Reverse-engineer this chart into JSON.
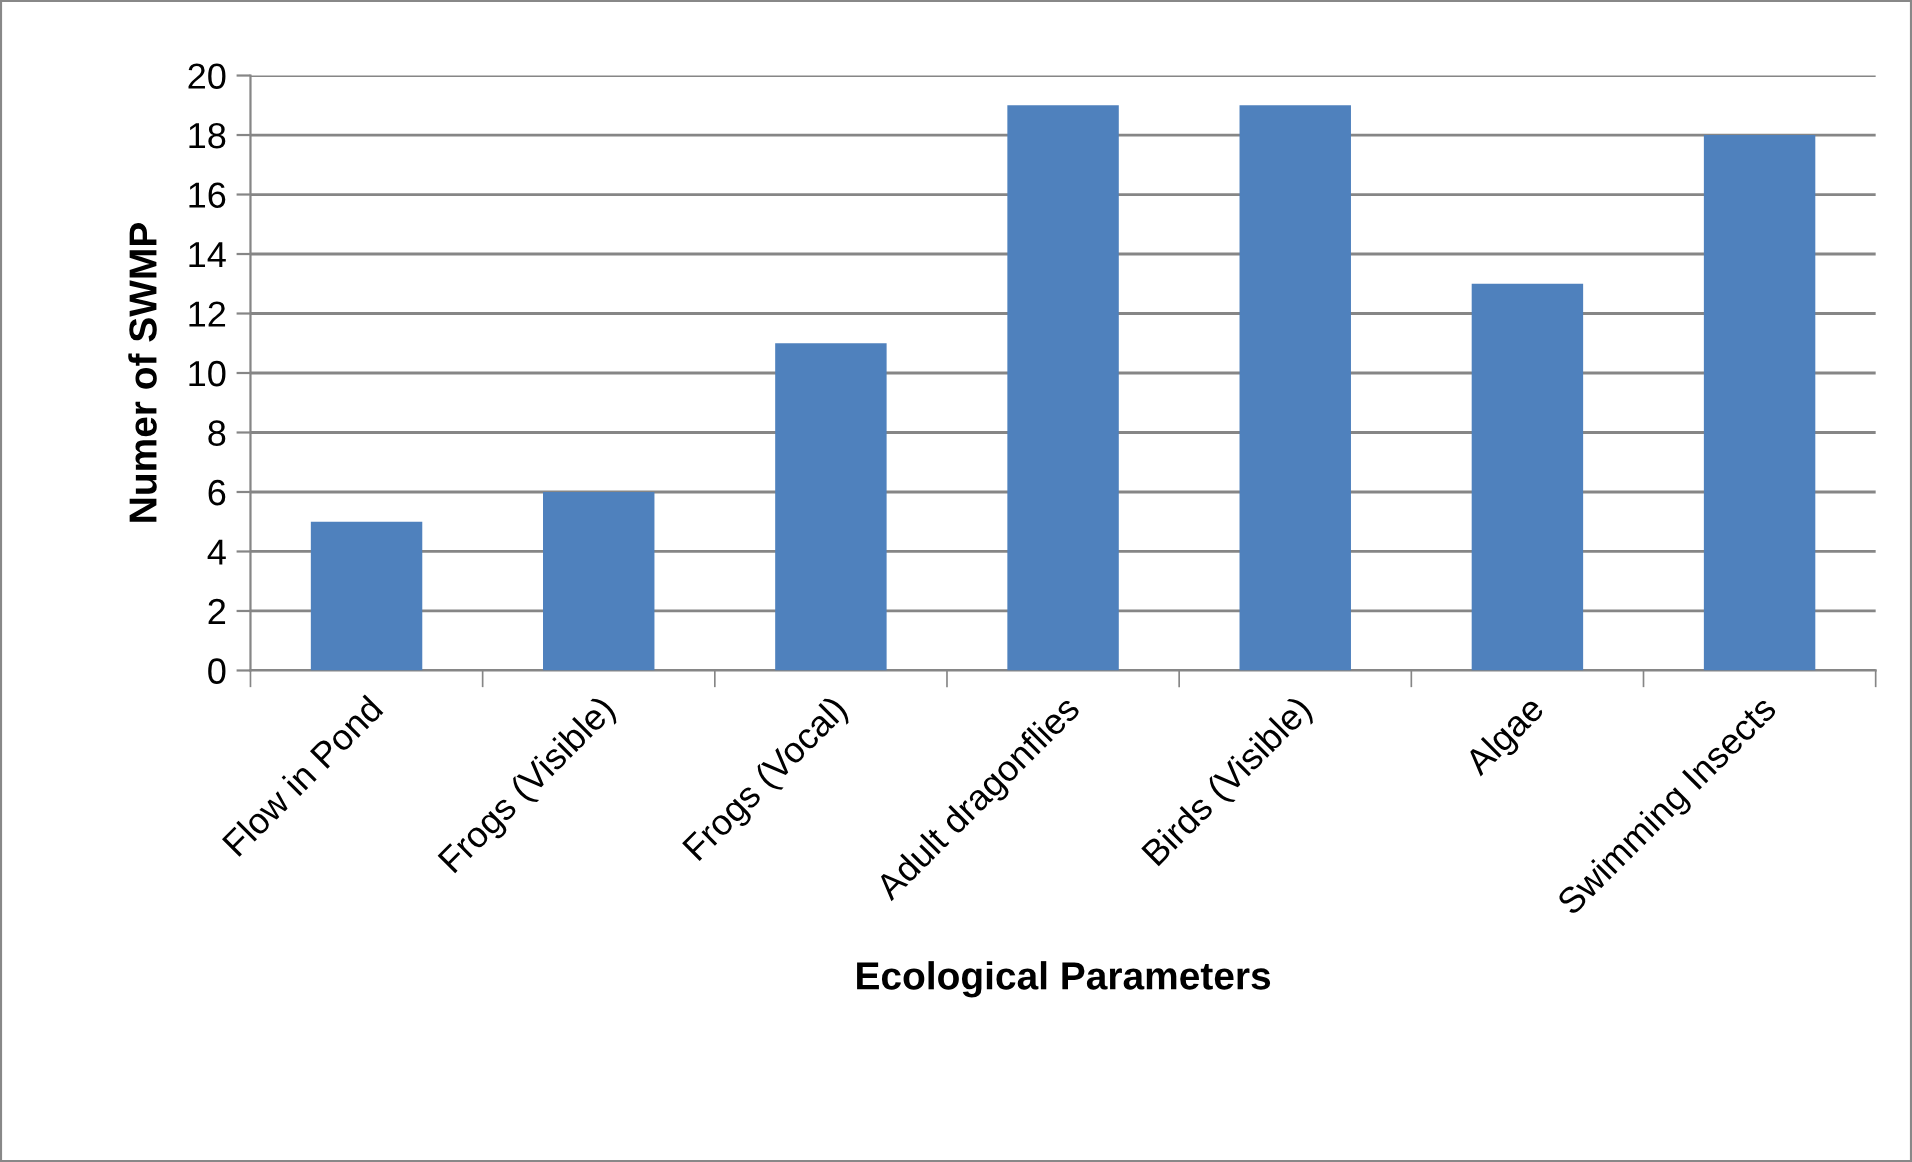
{
  "chart_data": {
    "type": "bar",
    "xlabel": "Ecological Parameters",
    "ylabel": "Numer of SWMP",
    "categories": [
      "Flow in Pond",
      "Frogs (Visible)",
      "Frogs (Vocal)",
      "Adult dragonflies",
      "Birds (Visible)",
      "Algae",
      "Swimming Insects"
    ],
    "values": [
      5,
      6,
      11,
      19,
      19,
      13,
      18
    ],
    "color": "#4f81bd",
    "ylim": [
      0,
      20
    ],
    "yticks": [
      0,
      2,
      4,
      6,
      8,
      10,
      12,
      14,
      16,
      18,
      20
    ],
    "grid": "y",
    "legend": false
  }
}
